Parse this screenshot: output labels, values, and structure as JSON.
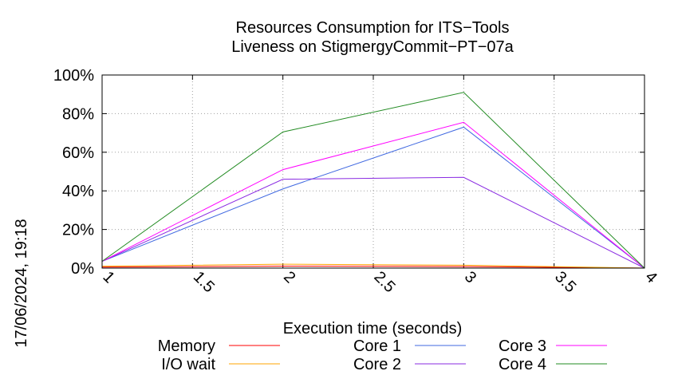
{
  "chart_data": {
    "type": "line",
    "title": "Resources Consumption for ITS−Tools",
    "subtitle": "Liveness on StigmergyCommit−PT−07a",
    "xlabel": "Execution time (seconds)",
    "ylabel": "",
    "timestamp": "17/06/2024, 19:18",
    "xlim": [
      1,
      4
    ],
    "ylim": [
      0,
      100
    ],
    "x_ticks": [
      1,
      1.5,
      2,
      2.5,
      3,
      3.5,
      4
    ],
    "x_tick_labels": [
      "1",
      "1.5",
      "2",
      "2.5",
      "3",
      "3.5",
      "4"
    ],
    "y_ticks": [
      0,
      20,
      40,
      60,
      80,
      100
    ],
    "y_tick_labels": [
      "0%",
      "20%",
      "40%",
      "60%",
      "80%",
      "100%"
    ],
    "grid": true,
    "legend_position": "bottom",
    "series": [
      {
        "name": "Memory",
        "color": "#ff0000",
        "x": [
          1,
          2,
          3,
          4
        ],
        "y": [
          0.5,
          1.0,
          0.8,
          0
        ]
      },
      {
        "name": "I/O wait",
        "color": "#ffa500",
        "x": [
          1,
          2,
          3,
          4
        ],
        "y": [
          1,
          2,
          1.5,
          0
        ]
      },
      {
        "name": "Core 1",
        "color": "#4169e1",
        "x": [
          1,
          2,
          3,
          4
        ],
        "y": [
          3.5,
          41,
          73,
          0
        ]
      },
      {
        "name": "Core 2",
        "color": "#8a2be2",
        "x": [
          1,
          2,
          3,
          4
        ],
        "y": [
          3.5,
          46,
          47,
          0
        ]
      },
      {
        "name": "Core 3",
        "color": "#ff00ff",
        "x": [
          1,
          2,
          3,
          4
        ],
        "y": [
          3.5,
          51,
          75.5,
          0
        ]
      },
      {
        "name": "Core 4",
        "color": "#228b22",
        "x": [
          1,
          2,
          3,
          4
        ],
        "y": [
          3.5,
          70.5,
          91,
          0
        ]
      }
    ]
  }
}
